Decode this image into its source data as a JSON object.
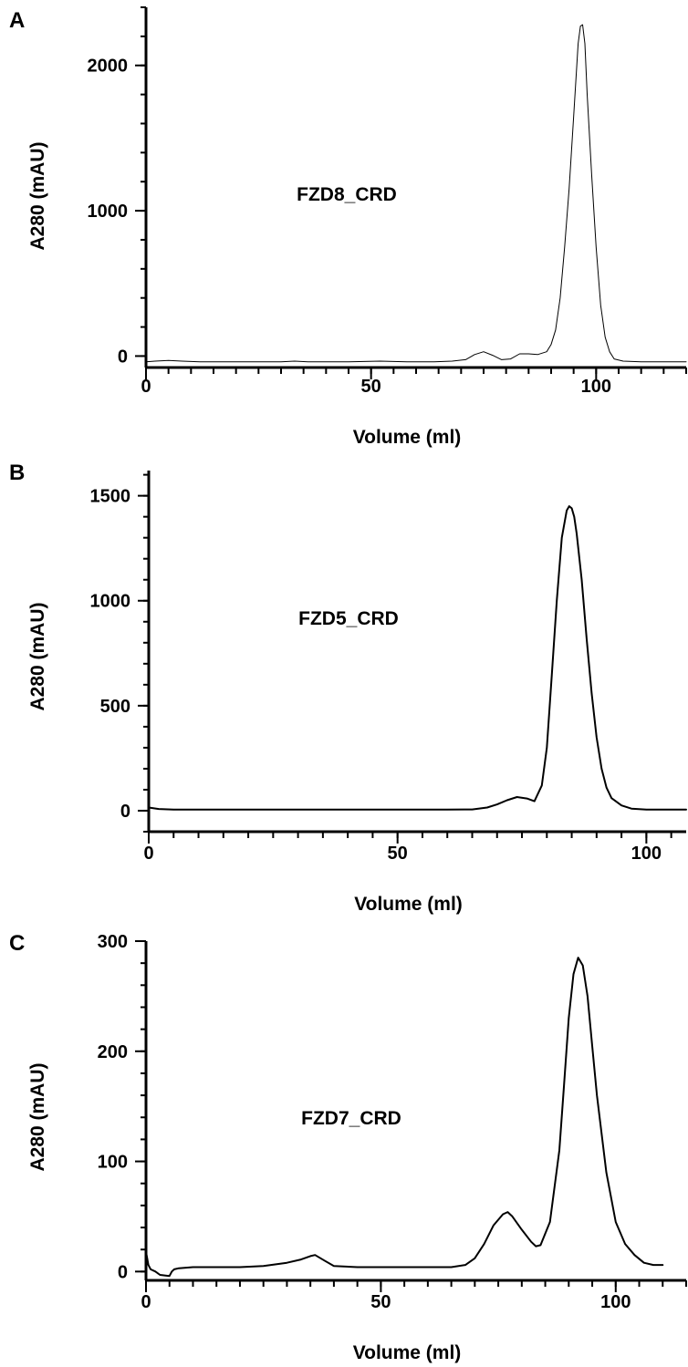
{
  "chart_data": [
    {
      "type": "line",
      "panel_label": "A",
      "annotation": "FZD8_CRD",
      "xlabel": "Volume (ml)",
      "ylabel": "A280 (mAU)",
      "xlim": [
        0,
        120
      ],
      "ylim": [
        -60,
        2400
      ],
      "xticks": [
        0,
        50,
        100
      ],
      "yticks": [
        0,
        1000,
        2000
      ],
      "grid": false,
      "series": [
        {
          "x": [
            0,
            2,
            5,
            8,
            12,
            20,
            30,
            33,
            36,
            45,
            52,
            58,
            64,
            68,
            71,
            73,
            75,
            77,
            79,
            81,
            83,
            85,
            87,
            89,
            90,
            91,
            92,
            93,
            94,
            95,
            96,
            96.5,
            97,
            97.5,
            98,
            99,
            100,
            101,
            102,
            103,
            104,
            106,
            110,
            115,
            120
          ],
          "y": [
            -40,
            -35,
            -30,
            -35,
            -40,
            -40,
            -40,
            -35,
            -40,
            -40,
            -35,
            -40,
            -40,
            -35,
            -25,
            10,
            30,
            5,
            -25,
            -20,
            15,
            15,
            10,
            30,
            80,
            180,
            400,
            750,
            1150,
            1650,
            2150,
            2270,
            2280,
            2150,
            1800,
            1250,
            750,
            350,
            130,
            30,
            -20,
            -35,
            -40,
            -40,
            -40
          ]
        }
      ]
    },
    {
      "type": "line",
      "panel_label": "B",
      "annotation": "FZD5_CRD",
      "xlabel": "Volume (ml)",
      "ylabel": "A280 (mAU)",
      "xlim": [
        0,
        108
      ],
      "ylim": [
        -100,
        1620
      ],
      "xticks": [
        0,
        50,
        100
      ],
      "yticks": [
        0,
        500,
        1000,
        1500
      ],
      "grid": false,
      "series": [
        {
          "x": [
            0,
            2,
            5,
            10,
            30,
            50,
            60,
            65,
            68,
            70,
            72,
            74,
            76,
            77.5,
            79,
            80,
            81,
            82,
            83,
            84,
            84.5,
            85,
            85.5,
            86,
            87,
            88,
            89,
            90,
            91,
            92,
            93,
            95,
            97,
            100,
            105,
            108
          ],
          "y": [
            15,
            8,
            5,
            5,
            5,
            5,
            5,
            6,
            15,
            30,
            50,
            65,
            58,
            45,
            120,
            300,
            650,
            1000,
            1300,
            1430,
            1450,
            1440,
            1400,
            1320,
            1100,
            820,
            560,
            350,
            200,
            110,
            60,
            25,
            10,
            5,
            5,
            5
          ]
        }
      ]
    },
    {
      "type": "line",
      "panel_label": "C",
      "annotation": "FZD7_CRD",
      "xlabel": "Volume (ml)",
      "ylabel": "A280 (mAU)",
      "xlim": [
        0,
        115
      ],
      "ylim": [
        -8,
        300
      ],
      "xticks": [
        0,
        50,
        100
      ],
      "yticks": [
        0,
        100,
        200,
        300
      ],
      "grid": false,
      "series": [
        {
          "x": [
            0,
            0.5,
            1,
            2,
            3,
            5,
            5.5,
            6,
            7,
            10,
            20,
            25,
            30,
            33,
            35,
            36,
            38,
            40,
            45,
            55,
            65,
            68,
            70,
            72,
            74,
            76,
            77,
            78,
            80,
            82,
            83,
            84,
            86,
            88,
            89,
            90,
            91,
            92,
            93,
            94,
            95,
            96,
            98,
            100,
            102,
            104,
            106,
            108,
            110
          ],
          "y": [
            18,
            6,
            2,
            0,
            -3,
            -4,
            0,
            2,
            3,
            4,
            4,
            5,
            8,
            11,
            14,
            15,
            10,
            5,
            4,
            4,
            4,
            6,
            12,
            25,
            42,
            52,
            54,
            50,
            38,
            27,
            23,
            24,
            45,
            110,
            170,
            230,
            270,
            285,
            278,
            250,
            205,
            160,
            90,
            45,
            25,
            15,
            8,
            6,
            6
          ]
        }
      ]
    }
  ]
}
